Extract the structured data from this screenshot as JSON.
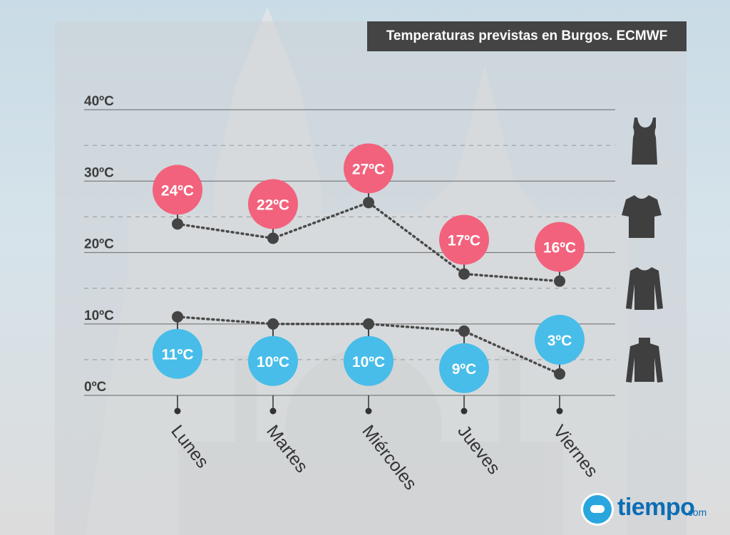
{
  "title": "Temperaturas previstas en Burgos. ECMWF",
  "colors": {
    "max": "#f2627c",
    "min": "#48bde9",
    "dot": "#444444",
    "grid": "#6e6e6e"
  },
  "clothing_icons": [
    "tank-top-icon",
    "t-shirt-icon",
    "long-sleeve-icon",
    "turtleneck-icon"
  ],
  "logo": {
    "word": "tiempo",
    "domain": ".com"
  },
  "chart_data": {
    "type": "line",
    "title": "Temperaturas previstas en Burgos. ECMWF",
    "categories": [
      "Lunes",
      "Martes",
      "Miércoles",
      "Jueves",
      "Viernes"
    ],
    "ylim": [
      0,
      40
    ],
    "yticks": [
      {
        "value": 0,
        "label": "0ºC"
      },
      {
        "value": 10,
        "label": "10ºC"
      },
      {
        "value": 20,
        "label": "20ºC"
      },
      {
        "value": 30,
        "label": "30ºC"
      },
      {
        "value": 40,
        "label": "40ºC"
      }
    ],
    "series": [
      {
        "values": [
          24,
          22,
          27,
          17,
          16
        ],
        "labels": [
          "24ºC",
          "22ºC",
          "27ºC",
          "17ºC",
          "16ºC"
        ],
        "color": "#f2627c"
      },
      {
        "values": [
          11,
          10,
          10,
          9,
          3
        ],
        "labels": [
          "11ºC",
          "10ºC",
          "10ºC",
          "9ºC",
          "3ºC"
        ],
        "color": "#48bde9"
      }
    ],
    "grid": true
  }
}
